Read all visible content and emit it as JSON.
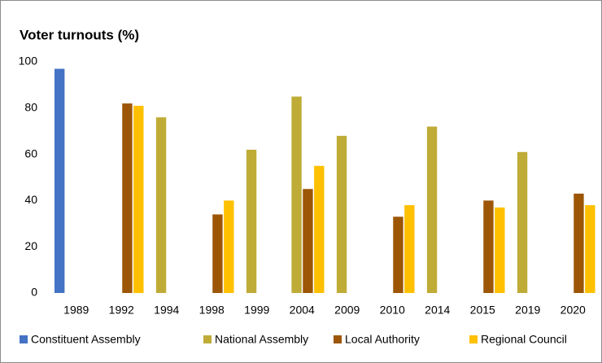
{
  "chart_data": {
    "type": "bar",
    "title": "Voter turnouts (%)",
    "categories": [
      "1989",
      "1992",
      "1994",
      "1998",
      "1999",
      "2004",
      "2009",
      "2010",
      "2014",
      "2015",
      "2019",
      "2020"
    ],
    "series": [
      {
        "name": "Constituent Assembly",
        "color": "#4472c4",
        "values": [
          97,
          null,
          null,
          null,
          null,
          null,
          null,
          null,
          null,
          null,
          null,
          null
        ]
      },
      {
        "name": "National Assembly",
        "color": "#bfac37",
        "values": [
          null,
          null,
          76,
          null,
          62,
          85,
          68,
          null,
          72,
          null,
          61,
          null
        ]
      },
      {
        "name": "Local Authority",
        "color": "#9c5606",
        "values": [
          null,
          82,
          null,
          34,
          null,
          45,
          null,
          33,
          null,
          40,
          null,
          43
        ]
      },
      {
        "name": "Regional Council",
        "color": "#ffc000",
        "values": [
          null,
          81,
          null,
          40,
          null,
          55,
          null,
          38,
          null,
          37,
          null,
          38
        ]
      }
    ],
    "ylim": [
      0,
      100
    ],
    "yticks": [
      0,
      20,
      40,
      60,
      80,
      100
    ],
    "grid": false,
    "legend": "bottom"
  }
}
